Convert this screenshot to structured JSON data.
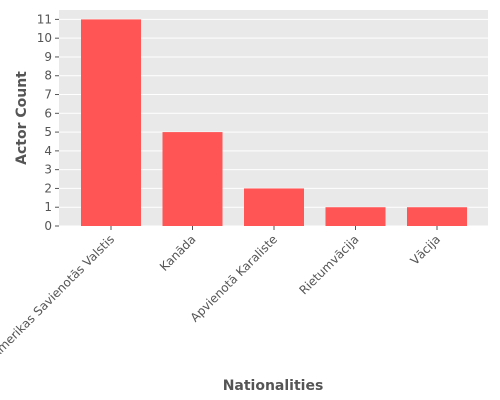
{
  "chart_data": {
    "type": "bar",
    "title": "",
    "xlabel": "Nationalities",
    "ylabel": "Actor Count",
    "categories": [
      "Amerikas Savienotās Valstis",
      "Kanāda",
      "Apvienotā Karaliste",
      "Rietumvācija",
      "Vācija"
    ],
    "values": [
      11,
      5,
      2,
      1,
      1
    ],
    "ylim": [
      0,
      11.5
    ],
    "yticks": [
      0,
      1,
      2,
      3,
      4,
      5,
      6,
      7,
      8,
      9,
      10,
      11
    ],
    "grid": true,
    "bar_color": "#ff5555",
    "background_color": "#e9e9e9",
    "grid_color": "#ffffff",
    "text_color": "#555555"
  }
}
